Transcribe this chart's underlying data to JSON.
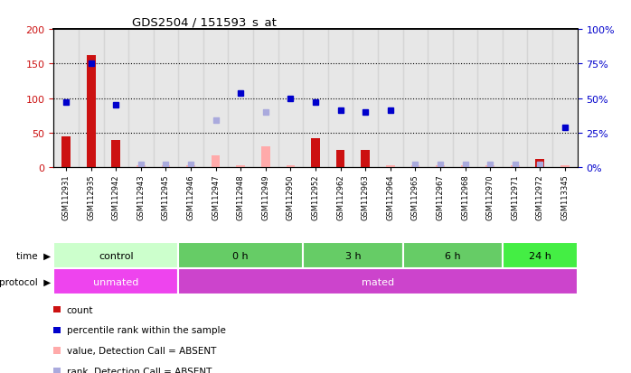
{
  "title": "GDS2504 / 151593_s_at",
  "samples": [
    "GSM112931",
    "GSM112935",
    "GSM112942",
    "GSM112943",
    "GSM112945",
    "GSM112946",
    "GSM112947",
    "GSM112948",
    "GSM112949",
    "GSM112950",
    "GSM112952",
    "GSM112962",
    "GSM112963",
    "GSM112964",
    "GSM112965",
    "GSM112967",
    "GSM112968",
    "GSM112970",
    "GSM112971",
    "GSM112972",
    "GSM113345"
  ],
  "count_values": [
    45,
    162,
    40,
    3,
    3,
    3,
    18,
    3,
    30,
    3,
    42,
    25,
    25,
    3,
    3,
    3,
    3,
    3,
    3,
    12,
    3
  ],
  "count_absent": [
    false,
    false,
    false,
    true,
    true,
    true,
    true,
    true,
    true,
    true,
    false,
    false,
    false,
    true,
    true,
    true,
    true,
    true,
    true,
    false,
    true
  ],
  "rank_values": [
    47,
    75,
    45,
    2,
    2,
    2,
    34,
    54,
    40,
    50,
    47,
    41,
    40,
    41,
    2,
    2,
    2,
    2,
    2,
    2,
    29
  ],
  "rank_absent": [
    false,
    false,
    false,
    true,
    true,
    true,
    true,
    false,
    true,
    false,
    false,
    false,
    false,
    false,
    true,
    true,
    true,
    true,
    true,
    true,
    false
  ],
  "time_groups": [
    {
      "label": "control",
      "start": 0,
      "end": 5,
      "color": "#ccffcc"
    },
    {
      "label": "0 h",
      "start": 5,
      "end": 10,
      "color": "#66cc66"
    },
    {
      "label": "3 h",
      "start": 10,
      "end": 14,
      "color": "#66cc66"
    },
    {
      "label": "6 h",
      "start": 14,
      "end": 18,
      "color": "#66cc66"
    },
    {
      "label": "24 h",
      "start": 18,
      "end": 21,
      "color": "#44ee44"
    }
  ],
  "protocol_groups": [
    {
      "label": "unmated",
      "start": 0,
      "end": 5,
      "color": "#ee44ee"
    },
    {
      "label": "mated",
      "start": 5,
      "end": 21,
      "color": "#cc44cc"
    }
  ],
  "ylim_left": [
    0,
    200
  ],
  "ylim_right": [
    0,
    100
  ],
  "yticks_left": [
    0,
    50,
    100,
    150,
    200
  ],
  "yticks_right": [
    0,
    25,
    50,
    75,
    100
  ],
  "count_color": "#cc1111",
  "count_absent_color": "#ffaaaa",
  "rank_color": "#0000cc",
  "rank_absent_color": "#aaaadd",
  "col_bg_color": "#d0d0d0"
}
